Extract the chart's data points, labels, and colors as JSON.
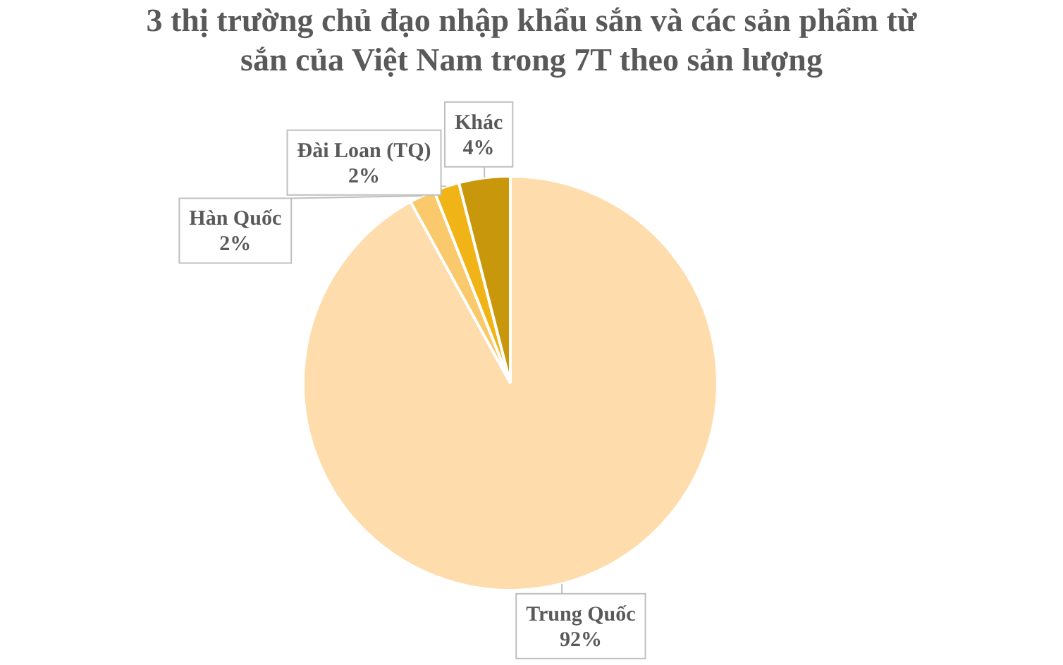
{
  "chart_data": {
    "type": "pie",
    "title": "3 thị trường chủ đạo nhập khẩu sắn và các sản phẩm từ sắn của Việt Nam trong 7T theo sản lượng",
    "categories": [
      "Trung Quốc",
      "Hàn Quốc",
      "Đài Loan (TQ)",
      "Khác"
    ],
    "values": [
      92,
      2,
      2,
      4
    ],
    "colors": [
      "#fedcab",
      "#fac96b",
      "#f0b416",
      "#c9970c"
    ],
    "value_labels": [
      "92%",
      "2%",
      "2%",
      "4%"
    ]
  }
}
